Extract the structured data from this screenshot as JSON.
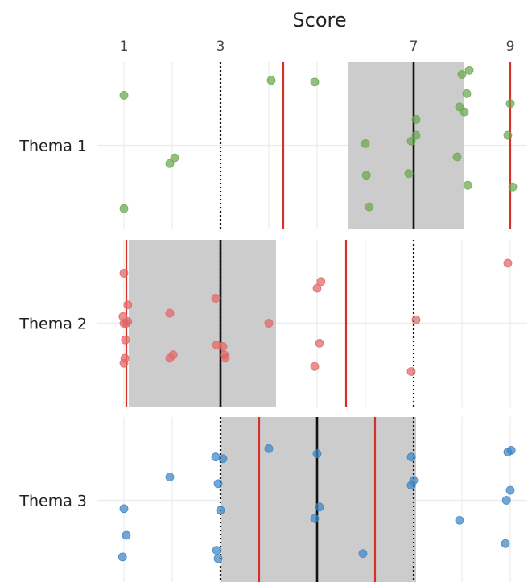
{
  "chart_data": {
    "type": "scatter",
    "xlabel": "Score",
    "ylabel": "",
    "x_ticks": [
      "1",
      "3",
      "7",
      "9"
    ],
    "x_gridlines": [
      1,
      2,
      3,
      4,
      5,
      6,
      7,
      8,
      9
    ],
    "xlim": [
      0.85,
      9.4
    ],
    "grid": true,
    "band_color": "#cccccc",
    "median_color": "#111111",
    "mean_color": "#d73027",
    "dotted_color": "#111111",
    "series": [
      {
        "name": "Thema 1",
        "color": "#6aa84f",
        "band": [
          5.65,
          8.05
        ],
        "median": 7,
        "mean_lines": [
          4.3,
          9
        ],
        "dotted_lines": [
          3
        ],
        "points": [
          {
            "x": 1,
            "y": 0.6
          },
          {
            "x": 1,
            "y": -0.76
          },
          {
            "x": 1.95,
            "y": -0.22
          },
          {
            "x": 2.05,
            "y": -0.15
          },
          {
            "x": 4.05,
            "y": 0.78
          },
          {
            "x": 4.95,
            "y": 0.76
          },
          {
            "x": 6,
            "y": 0.02
          },
          {
            "x": 6.02,
            "y": -0.36
          },
          {
            "x": 6.08,
            "y": -0.74
          },
          {
            "x": 6.9,
            "y": -0.34
          },
          {
            "x": 6.95,
            "y": 0.05
          },
          {
            "x": 7.05,
            "y": 0.12
          },
          {
            "x": 7.05,
            "y": 0.31
          },
          {
            "x": 7.9,
            "y": -0.14
          },
          {
            "x": 7.95,
            "y": 0.46
          },
          {
            "x": 8.0,
            "y": 0.85
          },
          {
            "x": 8.05,
            "y": 0.4
          },
          {
            "x": 8.1,
            "y": 0.62
          },
          {
            "x": 8.12,
            "y": -0.48
          },
          {
            "x": 8.15,
            "y": 0.9
          },
          {
            "x": 8.95,
            "y": 0.12
          },
          {
            "x": 9.0,
            "y": 0.5
          },
          {
            "x": 9.05,
            "y": -0.5
          }
        ]
      },
      {
        "name": "Thema 2",
        "color": "#e06666",
        "band": [
          1.1,
          4.15
        ],
        "median": 3,
        "mean_lines": [
          1.05,
          5.6
        ],
        "dotted_lines": [
          3,
          7
        ],
        "points": [
          {
            "x": 0.98,
            "y": 0.08
          },
          {
            "x": 1.0,
            "y": 0.6
          },
          {
            "x": 1.0,
            "y": 0.0
          },
          {
            "x": 1.0,
            "y": -0.48
          },
          {
            "x": 1.02,
            "y": -0.42
          },
          {
            "x": 1.03,
            "y": -0.2
          },
          {
            "x": 1.05,
            "y": 0.0
          },
          {
            "x": 1.08,
            "y": 0.02
          },
          {
            "x": 1.08,
            "y": 0.22
          },
          {
            "x": 1.95,
            "y": 0.12
          },
          {
            "x": 1.95,
            "y": -0.42
          },
          {
            "x": 2.02,
            "y": -0.38
          },
          {
            "x": 2.9,
            "y": 0.3
          },
          {
            "x": 2.92,
            "y": -0.26
          },
          {
            "x": 3.05,
            "y": -0.28
          },
          {
            "x": 3.08,
            "y": -0.38
          },
          {
            "x": 3.1,
            "y": -0.42
          },
          {
            "x": 4.0,
            "y": 0.0
          },
          {
            "x": 4.95,
            "y": -0.52
          },
          {
            "x": 5.0,
            "y": 0.42
          },
          {
            "x": 5.08,
            "y": 0.5
          },
          {
            "x": 5.05,
            "y": -0.24
          },
          {
            "x": 6.95,
            "y": -0.58
          },
          {
            "x": 7.05,
            "y": 0.04
          },
          {
            "x": 8.95,
            "y": 0.72
          }
        ]
      },
      {
        "name": "Thema 3",
        "color": "#3d85c6",
        "band": [
          3,
          7.05
        ],
        "median": 5,
        "mean_lines": [
          3.8,
          6.2
        ],
        "dotted_lines": [
          3,
          7
        ],
        "points": [
          {
            "x": 0.97,
            "y": -0.68
          },
          {
            "x": 1.0,
            "y": -0.1
          },
          {
            "x": 1.05,
            "y": -0.42
          },
          {
            "x": 1.95,
            "y": 0.28
          },
          {
            "x": 2.9,
            "y": 0.52
          },
          {
            "x": 2.92,
            "y": -0.6
          },
          {
            "x": 2.95,
            "y": -0.7
          },
          {
            "x": 2.95,
            "y": 0.2
          },
          {
            "x": 3.0,
            "y": -0.12
          },
          {
            "x": 3.05,
            "y": 0.5
          },
          {
            "x": 4.0,
            "y": 0.62
          },
          {
            "x": 4.95,
            "y": -0.22
          },
          {
            "x": 5.0,
            "y": 0.56
          },
          {
            "x": 5.05,
            "y": -0.08
          },
          {
            "x": 5.95,
            "y": -0.64
          },
          {
            "x": 6.95,
            "y": 0.52
          },
          {
            "x": 6.95,
            "y": 0.18
          },
          {
            "x": 7.0,
            "y": 0.24
          },
          {
            "x": 7.95,
            "y": -0.24
          },
          {
            "x": 8.9,
            "y": -0.52
          },
          {
            "x": 8.92,
            "y": 0.0
          },
          {
            "x": 8.95,
            "y": 0.58
          },
          {
            "x": 9.0,
            "y": 0.12
          },
          {
            "x": 9.02,
            "y": 0.6
          }
        ]
      }
    ]
  }
}
